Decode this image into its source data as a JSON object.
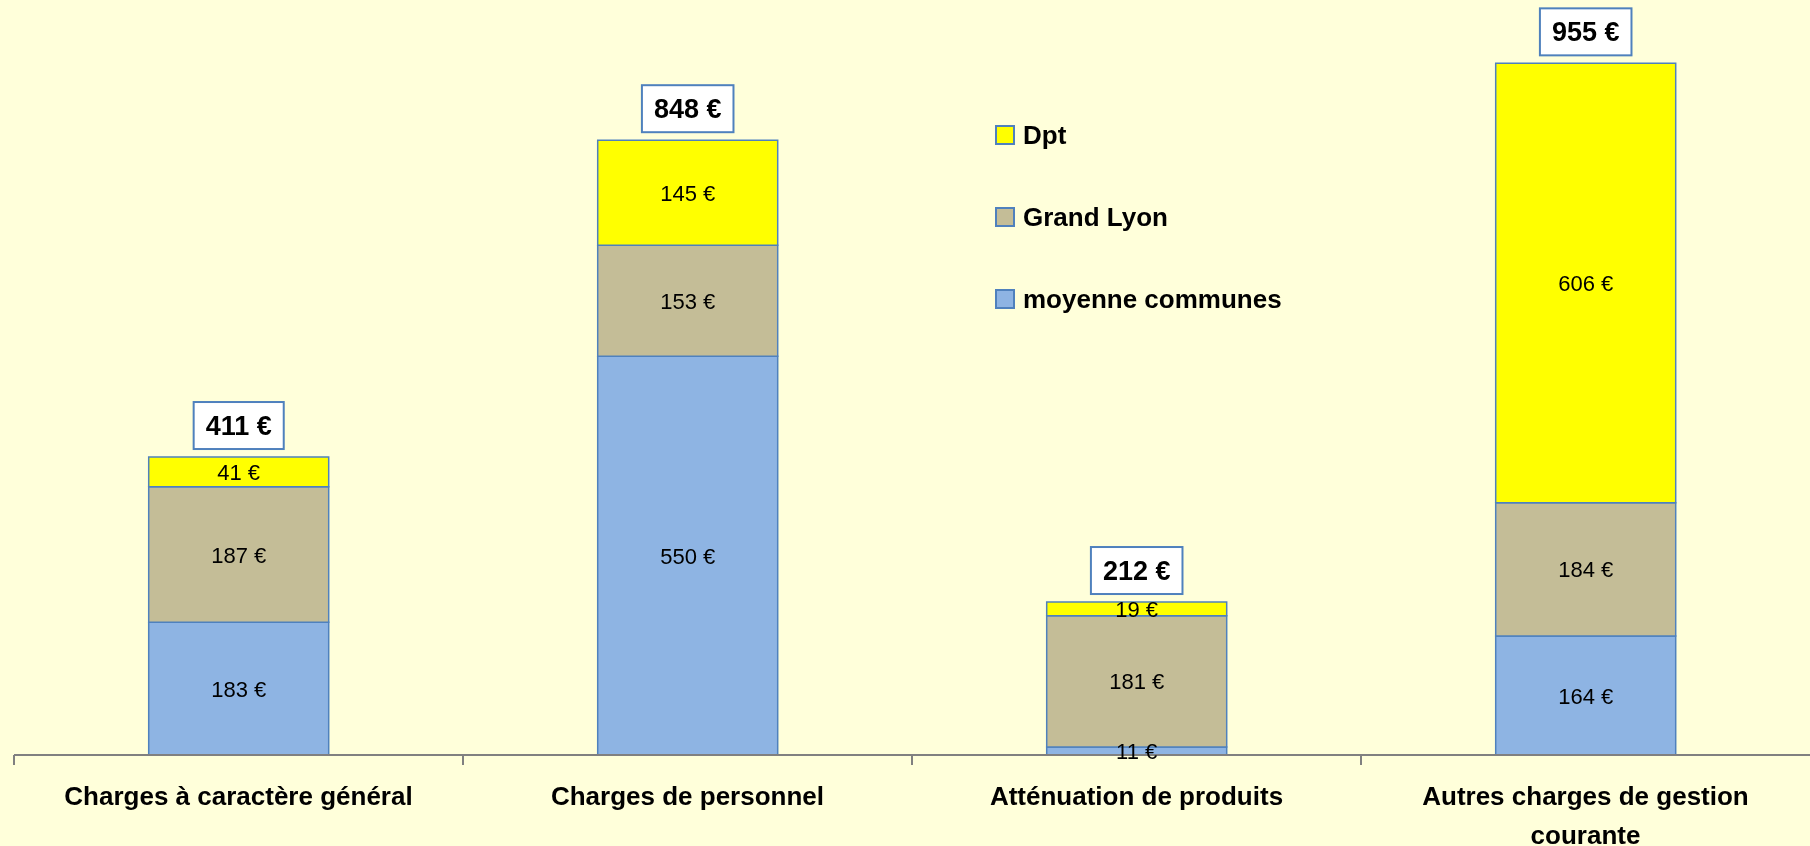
{
  "chart_data": {
    "type": "bar",
    "stacked": true,
    "categories": [
      "Charges à caractère général",
      "Charges de personnel",
      "Atténuation de produits",
      "Autres charges de gestion courante"
    ],
    "series": [
      {
        "name": "moyenne communes",
        "color": "#8eb4e3",
        "values": [
          183,
          550,
          11,
          164
        ],
        "value_labels": [
          "183 €",
          "550 €",
          "11 €",
          "164 €"
        ]
      },
      {
        "name": "Grand Lyon",
        "color": "#c4bd97",
        "values": [
          187,
          153,
          181,
          184
        ],
        "value_labels": [
          "187 €",
          "153 €",
          "181 €",
          "184 €"
        ]
      },
      {
        "name": "Dpt",
        "color": "#ffff00",
        "values": [
          41,
          145,
          19,
          606
        ],
        "value_labels": [
          "41 €",
          "145 €",
          "19 €",
          "606 €"
        ]
      }
    ],
    "totals": [
      "411 €",
      "848 €",
      "212 €",
      "955 €"
    ],
    "legend": "top right",
    "tick_labels": "x"
  }
}
